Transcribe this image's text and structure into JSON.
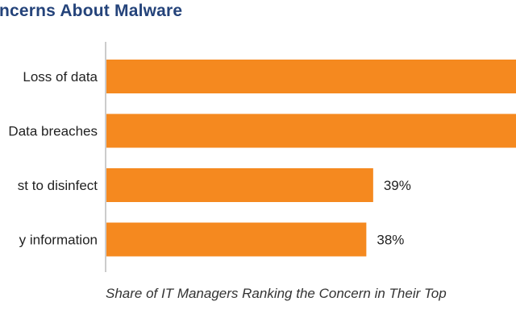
{
  "chart_data": {
    "type": "bar",
    "orientation": "horizontal",
    "title": "ncerns About Malware",
    "categories": [
      "Loss of data",
      "Data breaches",
      "st to disinfect",
      "y information"
    ],
    "values": [
      60,
      60,
      39,
      38
    ],
    "value_labels": [
      "",
      "",
      "39%",
      "38%"
    ],
    "xlim": [
      0,
      60
    ],
    "xlabel": "Share of IT Managers Ranking the Concern in Their Top",
    "ylabel": "",
    "grid": false,
    "bar_color": "#f5891f"
  }
}
